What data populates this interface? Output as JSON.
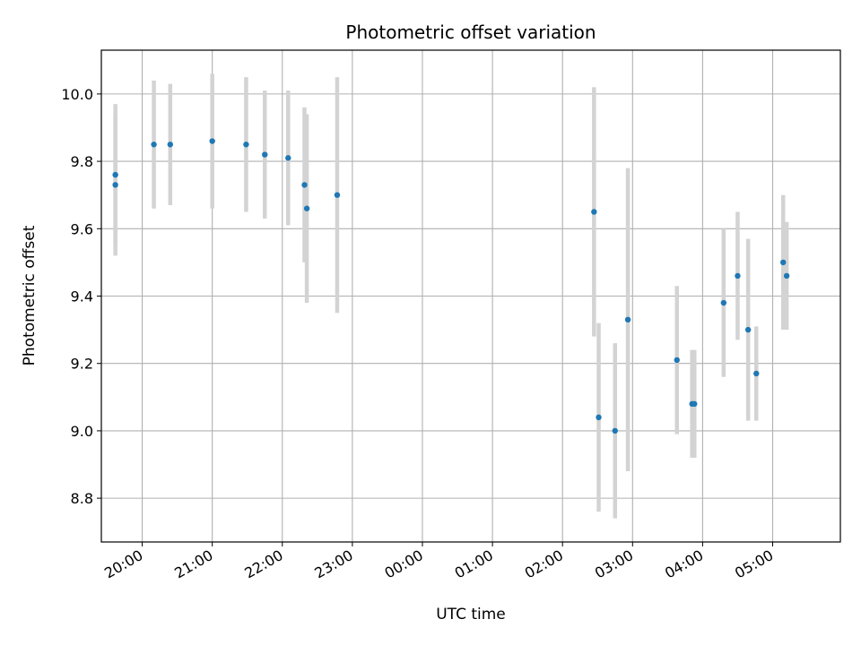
{
  "chart_data": {
    "type": "scatter",
    "title": "Photometric offset variation",
    "xlabel": "UTC time",
    "ylabel": "Photometric offset",
    "grid": true,
    "x_range": [
      "19:25",
      "05:58"
    ],
    "ylim": [
      8.67,
      10.13
    ],
    "x_ticks": [
      "20:00",
      "21:00",
      "22:00",
      "23:00",
      "00:00",
      "01:00",
      "02:00",
      "03:00",
      "04:00",
      "05:00"
    ],
    "y_ticks": [
      "8.8",
      "9.0",
      "9.2",
      "9.4",
      "9.6",
      "9.8",
      "10.0"
    ],
    "point_color": "#1f77b4",
    "errorbar_color": "#d3d3d3",
    "points": [
      {
        "x": "19:37",
        "y": 9.76,
        "err": 0.21
      },
      {
        "x": "19:37",
        "y": 9.73,
        "err": 0.21
      },
      {
        "x": "20:10",
        "y": 9.85,
        "err": 0.19
      },
      {
        "x": "20:24",
        "y": 9.85,
        "err": 0.18
      },
      {
        "x": "21:00",
        "y": 9.86,
        "err": 0.2
      },
      {
        "x": "21:29",
        "y": 9.85,
        "err": 0.2
      },
      {
        "x": "21:45",
        "y": 9.82,
        "err": 0.19
      },
      {
        "x": "22:05",
        "y": 9.81,
        "err": 0.2
      },
      {
        "x": "22:19",
        "y": 9.73,
        "err": 0.23
      },
      {
        "x": "22:21",
        "y": 9.66,
        "err": 0.28
      },
      {
        "x": "22:47",
        "y": 9.7,
        "err": 0.35
      },
      {
        "x": "02:27",
        "y": 9.65,
        "err": 0.37
      },
      {
        "x": "02:31",
        "y": 9.04,
        "err": 0.28
      },
      {
        "x": "02:45",
        "y": 9.0,
        "err": 0.26
      },
      {
        "x": "02:56",
        "y": 9.33,
        "err": 0.45
      },
      {
        "x": "03:38",
        "y": 9.21,
        "err": 0.22
      },
      {
        "x": "03:51",
        "y": 9.08,
        "err": 0.16
      },
      {
        "x": "03:53",
        "y": 9.08,
        "err": 0.16
      },
      {
        "x": "04:18",
        "y": 9.38,
        "err": 0.22
      },
      {
        "x": "04:30",
        "y": 9.46,
        "err": 0.19
      },
      {
        "x": "04:39",
        "y": 9.3,
        "err": 0.27
      },
      {
        "x": "04:46",
        "y": 9.17,
        "err": 0.14
      },
      {
        "x": "05:09",
        "y": 9.5,
        "err": 0.2
      },
      {
        "x": "05:12",
        "y": 9.46,
        "err": 0.16
      }
    ]
  }
}
